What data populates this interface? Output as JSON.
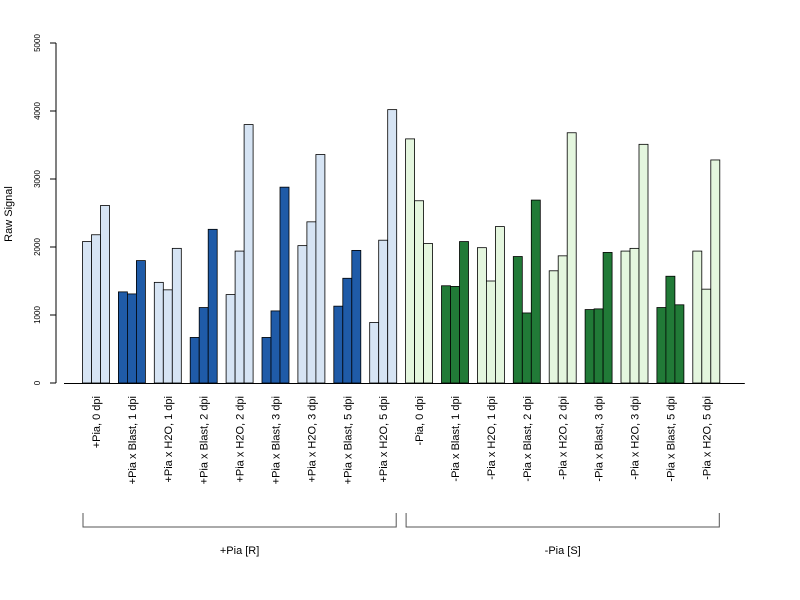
{
  "chart_data": {
    "type": "bar",
    "ylabel": "Raw Signal",
    "ylim": [
      0,
      5000
    ],
    "yticks": [
      0,
      1000,
      2000,
      3000,
      4000,
      5000
    ],
    "bars_per_group": 3,
    "colors": {
      "blue_light": "#d6e4f4",
      "blue_dark": "#1f5ba8",
      "green_light": "#e4f6de",
      "green_dark": "#217a37",
      "outline": "#000000",
      "axis": "#000000",
      "bracket": "#555555"
    },
    "categories": [
      {
        "label": "+Pia, 0 dpi",
        "values": [
          2080,
          2180,
          2610
        ],
        "color": "blue_light"
      },
      {
        "label": "+Pia x Blast, 1 dpi",
        "values": [
          1340,
          1310,
          1800
        ],
        "color": "blue_dark"
      },
      {
        "label": "+Pia x H2O, 1 dpi",
        "values": [
          1480,
          1370,
          1980
        ],
        "color": "blue_light"
      },
      {
        "label": "+Pia x Blast, 2 dpi",
        "values": [
          670,
          1110,
          2260
        ],
        "color": "blue_dark"
      },
      {
        "label": "+Pia x H2O, 2 dpi",
        "values": [
          1300,
          1940,
          3800
        ],
        "color": "blue_light"
      },
      {
        "label": "+Pia x Blast, 3 dpi",
        "values": [
          670,
          1060,
          2880
        ],
        "color": "blue_dark"
      },
      {
        "label": "+Pia x H2O, 3 dpi",
        "values": [
          2020,
          2370,
          3360
        ],
        "color": "blue_light"
      },
      {
        "label": "+Pia x Blast, 5 dpi",
        "values": [
          1130,
          1540,
          1950
        ],
        "color": "blue_dark"
      },
      {
        "label": "+Pia x H2O, 5 dpi",
        "values": [
          890,
          2100,
          4020
        ],
        "color": "blue_light"
      },
      {
        "label": "-Pia, 0 dpi",
        "values": [
          3590,
          2680,
          2050
        ],
        "color": "green_light"
      },
      {
        "label": "-Pia x Blast, 1 dpi",
        "values": [
          1430,
          1420,
          2080
        ],
        "color": "green_dark"
      },
      {
        "label": "-Pia x H2O, 1 dpi",
        "values": [
          1990,
          1500,
          2300
        ],
        "color": "green_light"
      },
      {
        "label": "-Pia x Blast, 2 dpi",
        "values": [
          1860,
          1030,
          2690
        ],
        "color": "green_dark"
      },
      {
        "label": "-Pia x H2O, 2 dpi",
        "values": [
          1650,
          1870,
          3680
        ],
        "color": "green_light"
      },
      {
        "label": "-Pia x Blast, 3 dpi",
        "values": [
          1080,
          1090,
          1920
        ],
        "color": "green_dark"
      },
      {
        "label": "-Pia x H2O, 3 dpi",
        "values": [
          1940,
          1980,
          3510
        ],
        "color": "green_light"
      },
      {
        "label": "-Pia x Blast, 5 dpi",
        "values": [
          1110,
          1570,
          1150
        ],
        "color": "green_dark"
      },
      {
        "label": "-Pia x H2O, 5 dpi",
        "values": [
          1940,
          1380,
          3280
        ],
        "color": "green_light"
      }
    ],
    "groups": [
      {
        "label": "+Pia [R]",
        "first": 0,
        "last": 8
      },
      {
        "label": "-Pia [S]",
        "first": 9,
        "last": 17
      }
    ]
  }
}
